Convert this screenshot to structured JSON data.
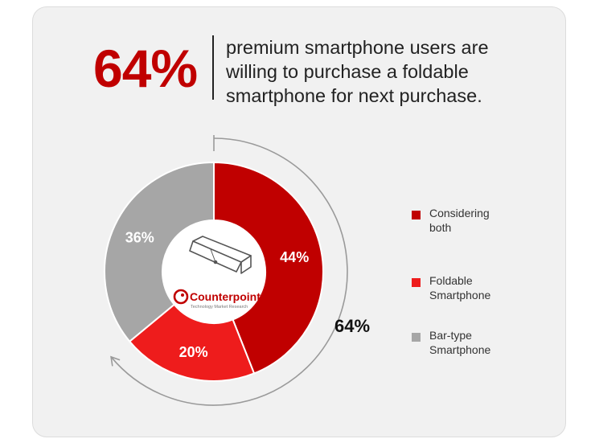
{
  "header": {
    "stat": "64%",
    "line1": "premium smartphone users are",
    "line2": "willing to purchase a foldable",
    "line3": "smartphone for next purchase."
  },
  "brand": {
    "name": "Counterpoint",
    "tagline": "Technology Market Research"
  },
  "bracket_label": "64%",
  "legend": [
    {
      "line1": "Considering",
      "line2": "both",
      "color": "#c00000"
    },
    {
      "line1": "Foldable",
      "line2": "Smartphone",
      "color": "#ee1c1c"
    },
    {
      "line1": "Bar-type",
      "line2": "Smartphone",
      "color": "#a6a6a6"
    }
  ],
  "chart_data": {
    "type": "pie",
    "categories": [
      "Considering both",
      "Foldable Smartphone",
      "Bar-type Smartphone"
    ],
    "values": [
      44,
      20,
      36
    ],
    "labels": [
      "44%",
      "20%",
      "36%"
    ],
    "colors": [
      "#c00000",
      "#ee1c1c",
      "#a6a6a6"
    ],
    "annotation": "64%"
  }
}
